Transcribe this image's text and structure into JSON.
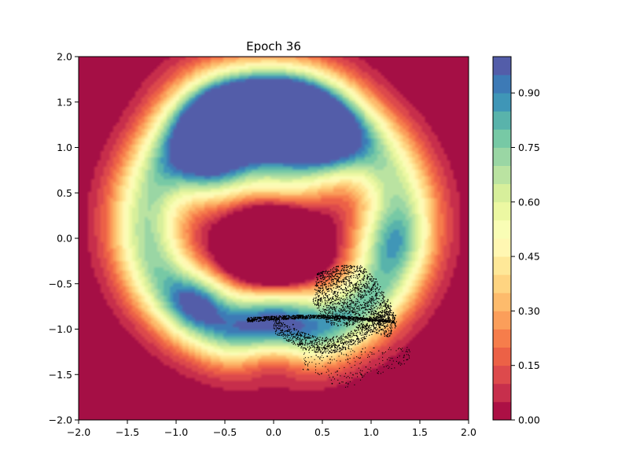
{
  "chart_data": {
    "type": "contour",
    "title": "Epoch 36",
    "xlabel": "",
    "ylabel": "",
    "xlim": [
      -2.0,
      2.0
    ],
    "ylim": [
      -2.0,
      2.0
    ],
    "x_ticks": [
      -2.0,
      -1.5,
      -1.0,
      -0.5,
      0.0,
      0.5,
      1.0,
      1.5,
      2.0
    ],
    "x_tick_labels": [
      "−2.0",
      "−1.5",
      "−1.0",
      "−0.5",
      "0.0",
      "0.5",
      "1.0",
      "1.5",
      "2.0"
    ],
    "y_ticks": [
      -2.0,
      -1.5,
      -1.0,
      -0.5,
      0.0,
      0.5,
      1.0,
      1.5,
      2.0
    ],
    "y_tick_labels": [
      "−2.0",
      "−1.5",
      "−1.0",
      "−0.5",
      "0.0",
      "0.5",
      "1.0",
      "1.5",
      "2.0"
    ],
    "grid": false,
    "colormap": "Spectral",
    "level_step": 0.05,
    "colorbar": {
      "range": [
        0.0,
        1.0
      ],
      "ticks": [
        0.0,
        0.15,
        0.3,
        0.45,
        0.6,
        0.75,
        0.9
      ],
      "tick_labels": [
        "0.00",
        "0.15",
        "0.30",
        "0.45",
        "0.60",
        "0.75",
        "0.90"
      ]
    },
    "scatter": {
      "color": "#000000",
      "description_points": [
        [
          0.45,
          -0.4
        ],
        [
          0.75,
          -0.3
        ],
        [
          1.05,
          -0.45
        ],
        [
          1.25,
          -0.85
        ],
        [
          1.2,
          -1.05
        ],
        [
          0.9,
          -1.25
        ],
        [
          0.55,
          -1.3
        ],
        [
          -0.27,
          -0.9
        ],
        [
          0.2,
          -0.95
        ],
        [
          0.6,
          -1.6
        ],
        [
          0.9,
          -1.5
        ]
      ]
    }
  }
}
